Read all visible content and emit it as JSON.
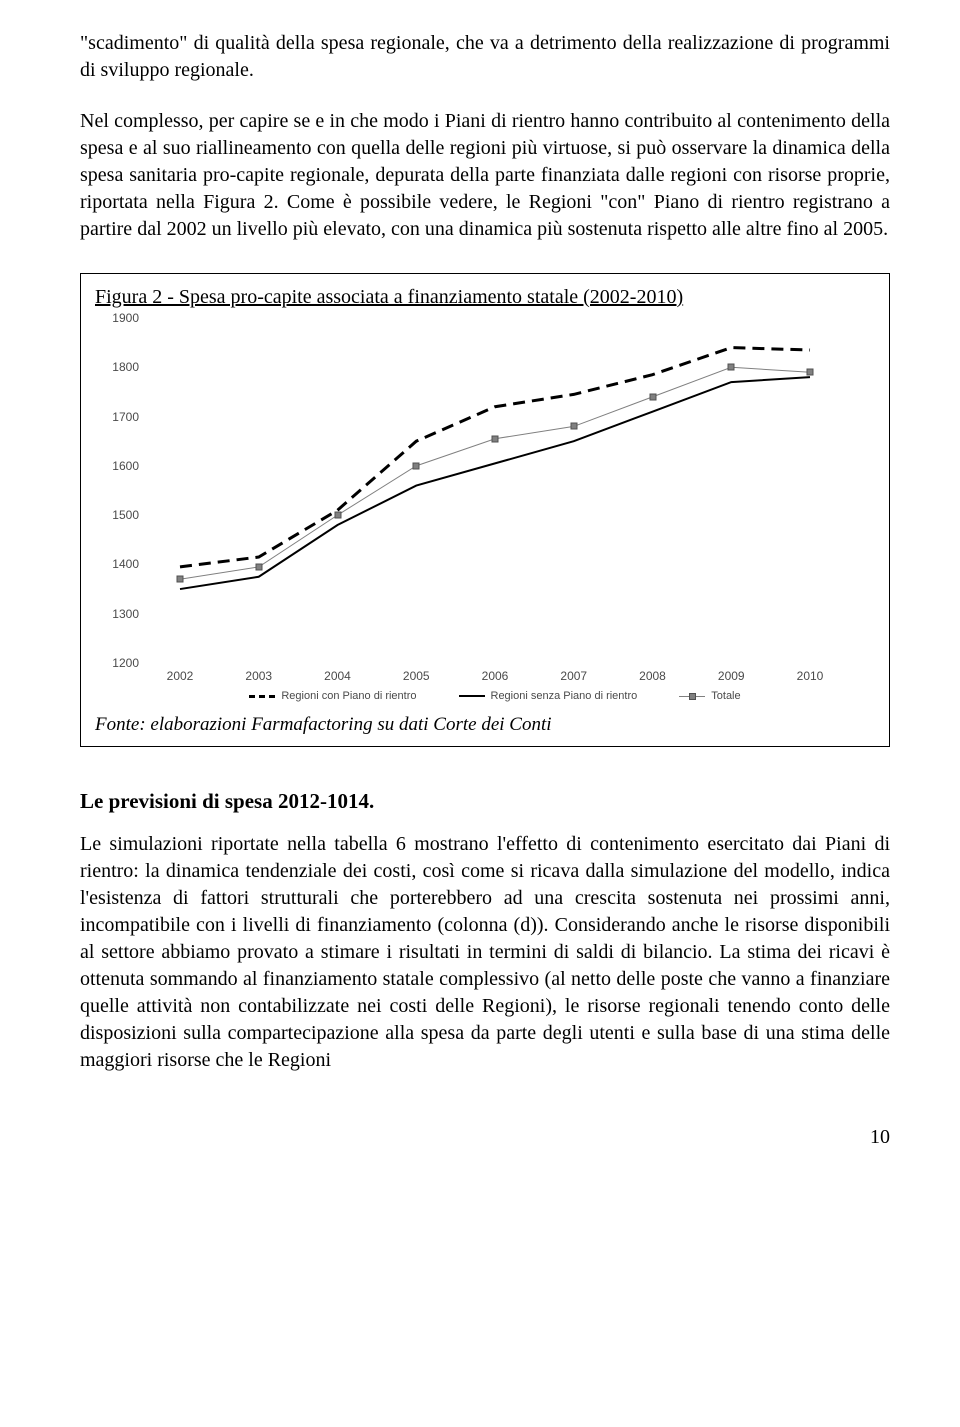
{
  "para1": "\"scadimento\" di qualità della spesa regionale, che va a detrimento della realizzazione di programmi di sviluppo regionale.",
  "para2": "Nel complesso, per capire se e in che modo i Piani di rientro hanno contribuito al contenimento della spesa e al suo riallineamento con quella delle regioni più virtuose, si può osservare la dinamica della spesa sanitaria pro-capite regionale, depurata della parte finanziata dalle regioni con risorse proprie, riportata nella Figura 2. Come è possibile vedere, le Regioni \"con\" Piano di rientro registrano a partire dal 2002 un livello più elevato, con una dinamica più sostenuta rispetto alle altre fino al 2005.",
  "figure": {
    "title": "Figura 2 - Spesa pro-capite associata a finanziamento statale (2002-2010)",
    "source": "Fonte: elaborazioni Farmafactoring su dati Corte dei Conti",
    "chart": {
      "type": "line",
      "x_categories": [
        "2002",
        "2003",
        "2004",
        "2005",
        "2006",
        "2007",
        "2008",
        "2009",
        "2010"
      ],
      "ylim": [
        1200,
        1900
      ],
      "ytick_step": 100,
      "y_ticks": [
        "1200",
        "1300",
        "1400",
        "1500",
        "1600",
        "1700",
        "1800",
        "1900"
      ],
      "series": [
        {
          "name": "Regioni con Piano di rientro",
          "style": "dashed",
          "color": "#000000",
          "width": 3,
          "values": [
            1395,
            1415,
            1510,
            1650,
            1720,
            1745,
            1785,
            1840,
            1835
          ]
        },
        {
          "name": "Regioni senza Piano di rientro",
          "style": "solid",
          "color": "#000000",
          "width": 2,
          "values": [
            1350,
            1375,
            1480,
            1560,
            1605,
            1650,
            1710,
            1770,
            1780
          ]
        },
        {
          "name": "Totale",
          "style": "marker-line",
          "color": "#808080",
          "width": 1,
          "values": [
            1370,
            1395,
            1500,
            1600,
            1655,
            1680,
            1740,
            1800,
            1790
          ]
        }
      ],
      "legend": {
        "items": [
          "Regioni con Piano di rientro",
          "Regioni senza Piano di rientro",
          "Totale"
        ]
      },
      "background_color": "#ffffff",
      "axis_font": "Arial",
      "axis_fontsize": 12,
      "legend_fontsize": 11
    }
  },
  "section_heading": "Le previsioni di spesa 2012-1014.",
  "para3": "Le simulazioni riportate nella tabella 6 mostrano l'effetto di contenimento esercitato dai Piani di rientro: la dinamica tendenziale dei costi, così come si ricava dalla simulazione del modello, indica l'esistenza di fattori strutturali che porterebbero ad una crescita sostenuta nei prossimi anni, incompatibile con i livelli di finanziamento (colonna (d)). Considerando anche le risorse disponibili al settore abbiamo provato a stimare i risultati in termini di saldi di bilancio. La stima dei ricavi è ottenuta sommando al finanziamento statale complessivo (al netto delle poste che vanno a finanziare quelle attività non contabilizzate nei costi delle Regioni), le risorse regionali tenendo conto delle disposizioni sulla compartecipazione alla spesa da parte degli utenti e sulla base di una stima delle maggiori risorse che le Regioni",
  "page_number": "10"
}
